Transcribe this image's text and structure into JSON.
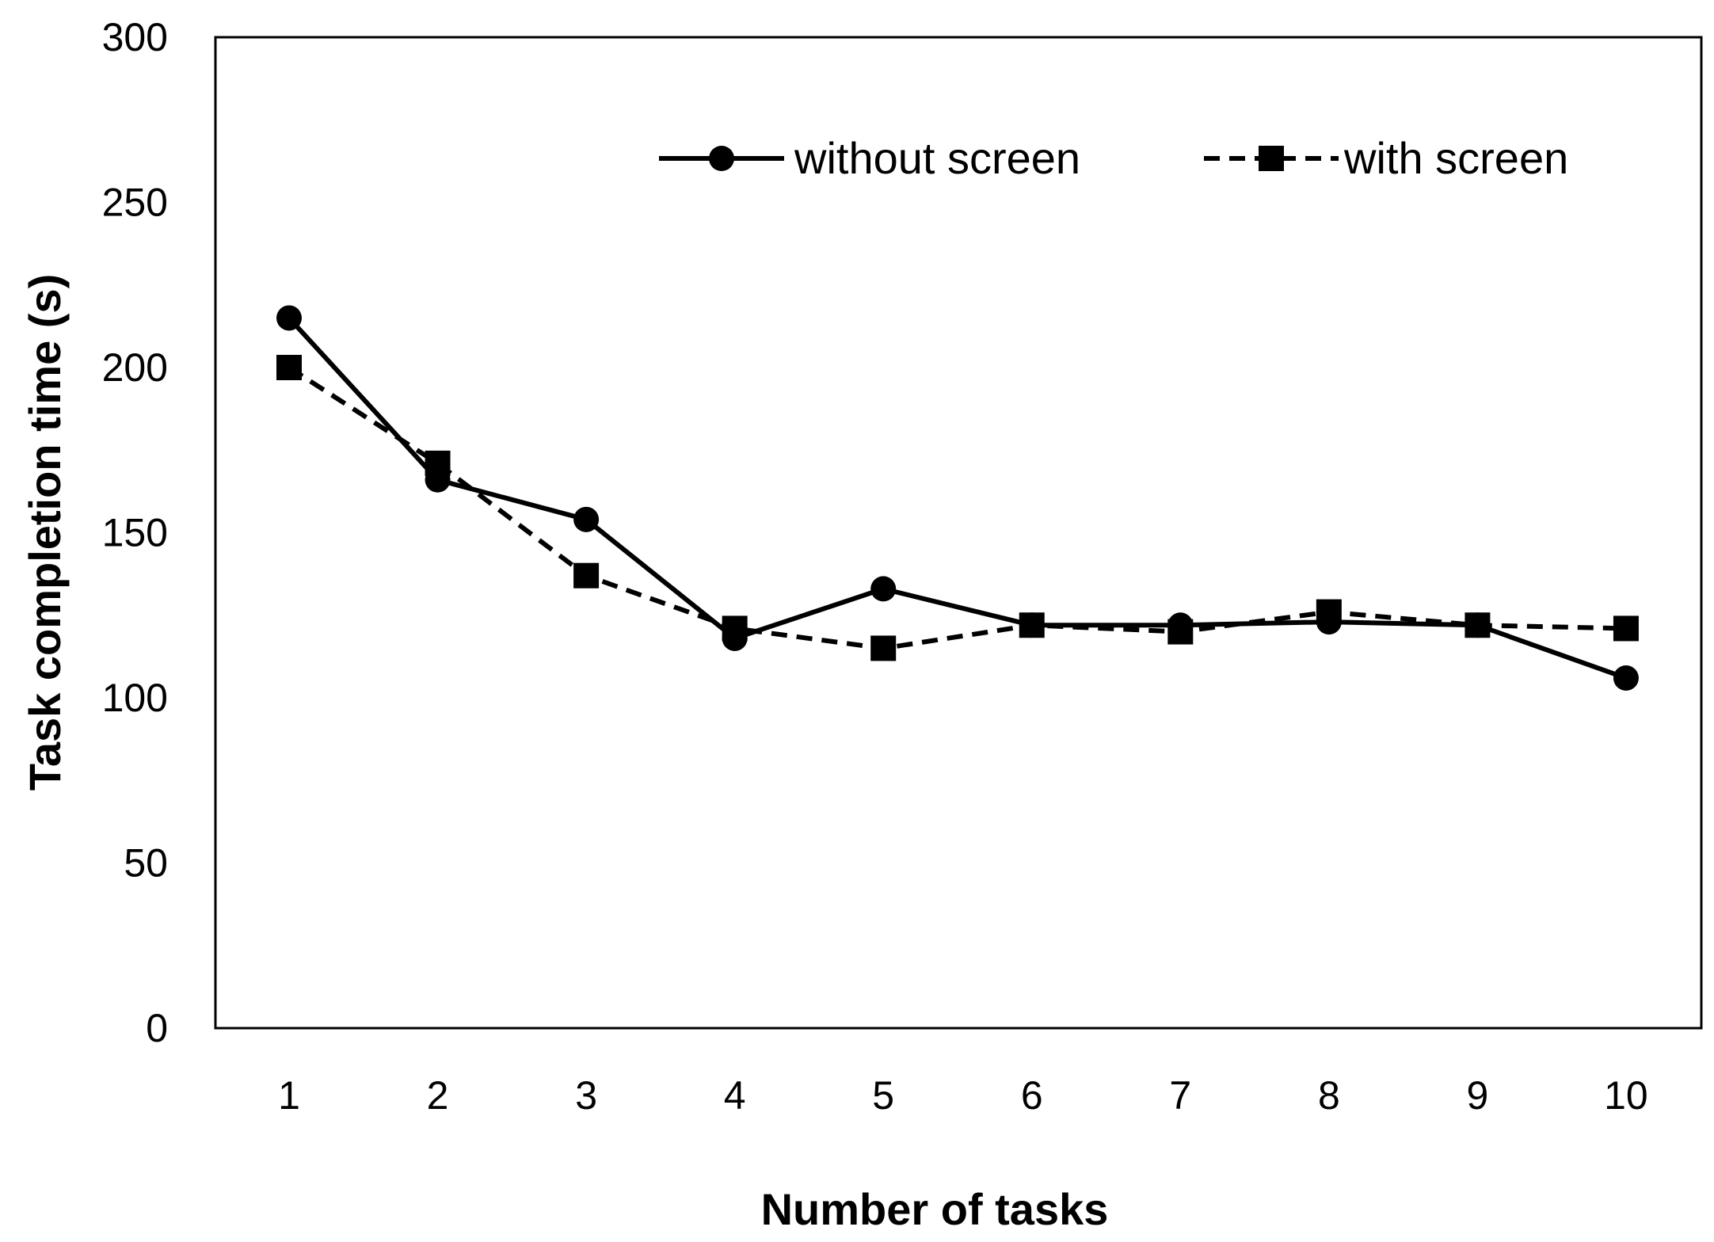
{
  "chart_data": {
    "type": "line",
    "xlabel": "Number of tasks",
    "ylabel": "Task completion time (s)",
    "x": [
      1,
      2,
      3,
      4,
      5,
      6,
      7,
      8,
      9,
      10
    ],
    "xticks": [
      "1",
      "2",
      "3",
      "4",
      "5",
      "6",
      "7",
      "8",
      "9",
      "10"
    ],
    "ylim": [
      0,
      300
    ],
    "yticks": [
      "0",
      "50",
      "100",
      "150",
      "200",
      "250",
      "300"
    ],
    "grid": false,
    "legend_position": "top-right",
    "series": [
      {
        "name": "without screen",
        "values": [
          215,
          166,
          154,
          118,
          133,
          122,
          122,
          123,
          122,
          106
        ],
        "line_style": "solid",
        "marker": "circle",
        "color": "#000000"
      },
      {
        "name": "with screen",
        "values": [
          200,
          171,
          137,
          121,
          115,
          122,
          120,
          126,
          122,
          121
        ],
        "line_style": "dashed",
        "marker": "square",
        "color": "#000000"
      }
    ]
  }
}
